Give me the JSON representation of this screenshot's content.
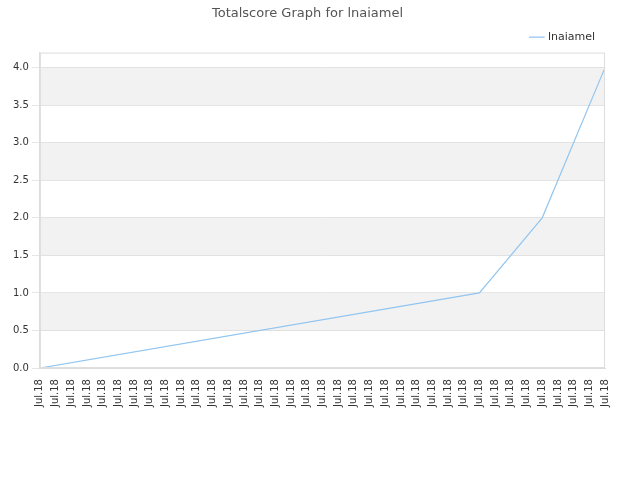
{
  "chart_data": {
    "type": "line",
    "title": "Totalscore Graph for lnaiamel",
    "categories": [
      "Jul.18",
      "Jul.18",
      "Jul.18",
      "Jul.18",
      "Jul.18",
      "Jul.18",
      "Jul.18",
      "Jul.18",
      "Jul.18",
      "Jul.18",
      "Jul.18",
      "Jul.18",
      "Jul.18",
      "Jul.18",
      "Jul.18",
      "Jul.18",
      "Jul.18",
      "Jul.18",
      "Jul.18",
      "Jul.18",
      "Jul.18",
      "Jul.18",
      "Jul.18",
      "Jul.18",
      "Jul.18",
      "Jul.18",
      "Jul.18",
      "Jul.18",
      "Jul.18",
      "Jul.18",
      "Jul.18",
      "Jul.18",
      "Jul.18",
      "Jul.18",
      "Jul.18",
      "Jul.18",
      "Jul.18"
    ],
    "series": [
      {
        "name": "lnaiamel",
        "color": "#92c5f0",
        "values": [
          0,
          null,
          null,
          null,
          null,
          null,
          null,
          null,
          null,
          null,
          null,
          null,
          null,
          null,
          null,
          null,
          null,
          null,
          null,
          null,
          null,
          null,
          null,
          null,
          null,
          null,
          null,
          null,
          1,
          null,
          null,
          null,
          2,
          null,
          null,
          null,
          4
        ]
      }
    ],
    "ylim": [
      0,
      4.2
    ],
    "yticks": [
      {
        "value": 0,
        "label": "0.0"
      },
      {
        "value": 0.5,
        "label": "0.5"
      },
      {
        "value": 1,
        "label": "1.0"
      },
      {
        "value": 1.5,
        "label": "1.5"
      },
      {
        "value": 2,
        "label": "2.0"
      },
      {
        "value": 2.5,
        "label": "2.5"
      },
      {
        "value": 3,
        "label": "3.0"
      },
      {
        "value": 3.5,
        "label": "3.5"
      },
      {
        "value": 4,
        "label": "4.0"
      }
    ],
    "grid": true,
    "legend": "upper right"
  }
}
